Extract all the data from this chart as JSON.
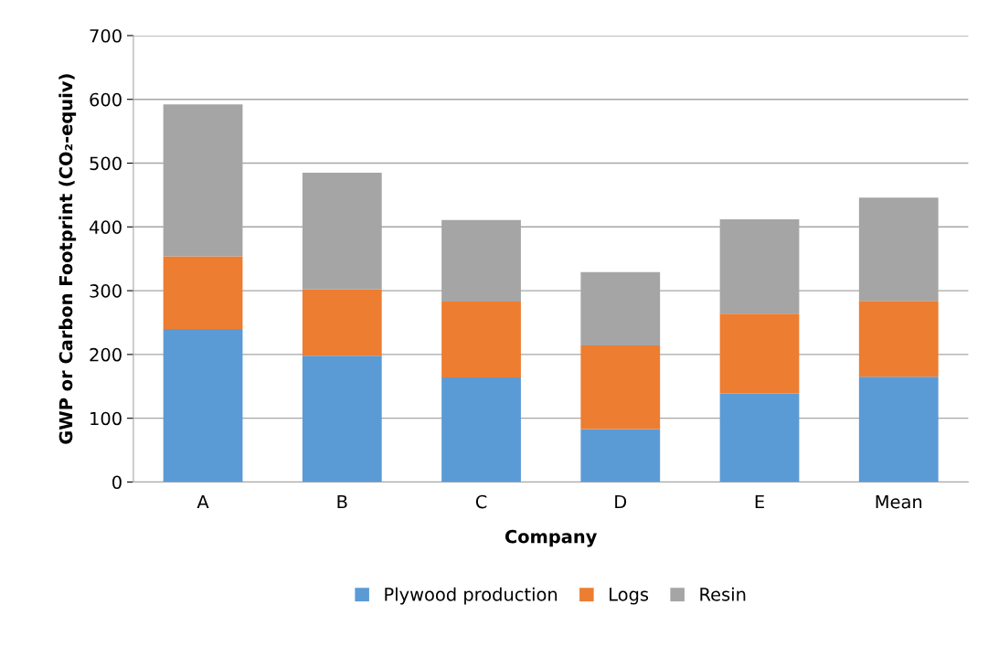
{
  "chart_data": {
    "type": "bar",
    "stacked": true,
    "xlabel": "Company",
    "ylabel": "GWP or Carbon Footprint (CO₂-equiv)",
    "categories": [
      "A",
      "B",
      "C",
      "D",
      "E",
      "Mean"
    ],
    "series": [
      {
        "name": "Plywood production",
        "color": "#5b9bd5",
        "values": [
          240,
          198,
          164,
          83,
          139,
          165
        ]
      },
      {
        "name": "Logs",
        "color": "#ed7d31",
        "values": [
          114,
          104,
          119,
          131,
          125,
          119
        ]
      },
      {
        "name": "Resin",
        "color": "#a5a5a5",
        "values": [
          238,
          183,
          128,
          115,
          148,
          162
        ]
      }
    ],
    "ylim": [
      0,
      700
    ],
    "yticks": [
      0,
      100,
      200,
      300,
      400,
      500,
      600,
      700
    ],
    "grid": "y",
    "legend": "bottom"
  }
}
